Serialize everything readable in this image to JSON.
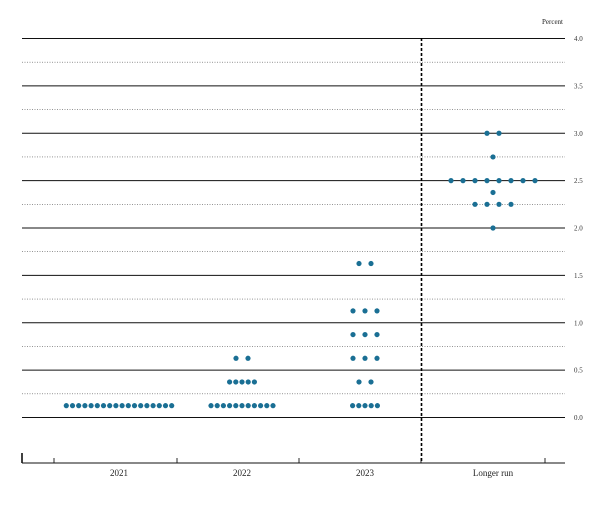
{
  "chart_data": {
    "type": "scatter",
    "ylabel": "Percent",
    "ylim": [
      -0.25,
      4.0
    ],
    "ytick_labels": [
      "0.0",
      "0.5",
      "1.0",
      "1.5",
      "2.0",
      "2.5",
      "3.0",
      "3.5",
      "4.0"
    ],
    "grid": true,
    "categories": [
      "2021",
      "2022",
      "2023",
      "Longer run"
    ],
    "dot_color": "#1a6f94",
    "series": [
      {
        "category": "2021",
        "points": [
          {
            "y": 0.125,
            "count": 18
          }
        ]
      },
      {
        "category": "2022",
        "points": [
          {
            "y": 0.125,
            "count": 11
          },
          {
            "y": 0.375,
            "count": 5
          },
          {
            "y": 0.625,
            "count": 2
          }
        ]
      },
      {
        "category": "2023",
        "points": [
          {
            "y": 0.125,
            "count": 5
          },
          {
            "y": 0.375,
            "count": 2
          },
          {
            "y": 0.625,
            "count": 3
          },
          {
            "y": 0.875,
            "count": 3
          },
          {
            "y": 1.125,
            "count": 3
          },
          {
            "y": 1.625,
            "count": 2
          }
        ]
      },
      {
        "category": "Longer run",
        "points": [
          {
            "y": 2.0,
            "count": 1
          },
          {
            "y": 2.25,
            "count": 4
          },
          {
            "y": 2.375,
            "count": 1
          },
          {
            "y": 2.5,
            "count": 8
          },
          {
            "y": 2.75,
            "count": 1
          },
          {
            "y": 3.0,
            "count": 2
          }
        ]
      }
    ]
  }
}
